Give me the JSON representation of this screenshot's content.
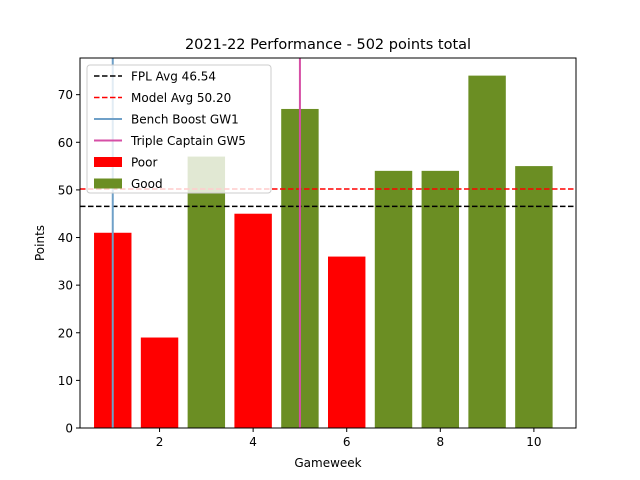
{
  "chart_data": {
    "type": "bar",
    "title": "2021-22 Performance - 502 points total",
    "xlabel": "Gameweek",
    "ylabel": "Points",
    "xlim": [
      0.3,
      10.9
    ],
    "ylim": [
      0,
      77.7
    ],
    "x_ticks": [
      2,
      4,
      6,
      8,
      10
    ],
    "y_ticks": [
      0,
      10,
      20,
      30,
      40,
      50,
      60,
      70
    ],
    "grid": false,
    "legend_position": "top-left",
    "categories": [
      1,
      2,
      3,
      4,
      5,
      6,
      7,
      8,
      9,
      10
    ],
    "values": [
      41,
      19,
      57,
      45,
      67,
      36,
      54,
      54,
      74,
      55
    ],
    "bar_groups": [
      "Poor",
      "Poor",
      "Good",
      "Poor",
      "Good",
      "Poor",
      "Good",
      "Good",
      "Good",
      "Good"
    ],
    "series": [
      {
        "name": "Poor",
        "color": "#ff0000"
      },
      {
        "name": "Good",
        "color": "#6b8e23"
      }
    ],
    "reference_lines": [
      {
        "name": "FPL Avg 46.54",
        "orientation": "horizontal",
        "value": 46.54,
        "color": "#000000",
        "style": "dashed"
      },
      {
        "name": "Model Avg 50.20",
        "orientation": "horizontal",
        "value": 50.2,
        "color": "#ff0000",
        "style": "dashed"
      },
      {
        "name": "Bench Boost GW1",
        "orientation": "vertical",
        "value": 1,
        "color": "#6fa0c8",
        "style": "solid"
      },
      {
        "name": "Triple Captain GW5",
        "orientation": "vertical",
        "value": 5,
        "color": "#d64fa6",
        "style": "solid"
      }
    ]
  }
}
